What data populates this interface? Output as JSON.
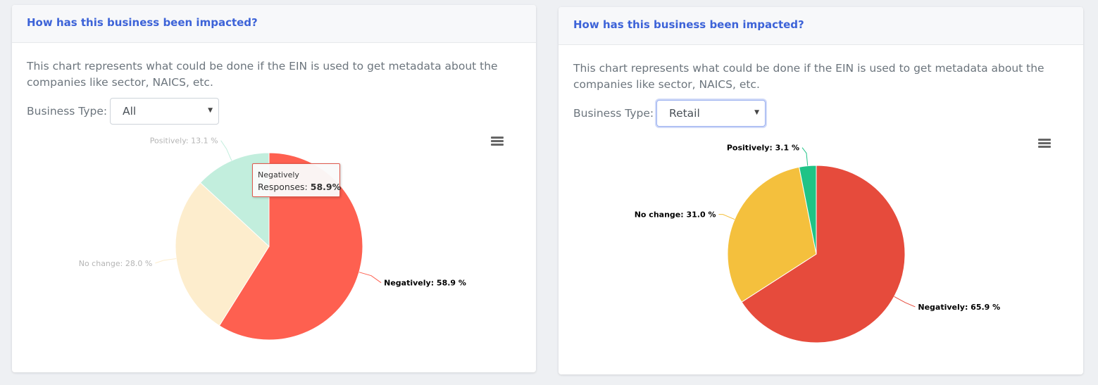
{
  "left_card": {
    "title": "How has this business been impacted?",
    "description": "This chart represents what could be done if the EIN is used to get metadata about the companies like sector, NAICS, etc.",
    "business_type_label": "Business Type:",
    "business_type_value": "All",
    "menu_icon": "hamburger-menu-icon",
    "tooltip": {
      "title": "Negatively",
      "series": "Responses:",
      "value": "58.9%"
    }
  },
  "right_card": {
    "title": "How has this business been impacted?",
    "description": "This chart represents what could be done if the EIN is used to get metadata about the companies like sector, NAICS, etc.",
    "business_type_label": "Business Type:",
    "business_type_value": "Retail",
    "menu_icon": "hamburger-menu-icon"
  },
  "chart_data": [
    {
      "type": "pie",
      "slices": [
        {
          "name": "Negatively",
          "value": 58.9,
          "label": "Negatively: 58.9 %",
          "color": "#fe6050",
          "highlighted": true
        },
        {
          "name": "No change",
          "value": 28.0,
          "label": "No change: 28.0 %",
          "color": "#fdedcd",
          "highlighted": false
        },
        {
          "name": "Positively",
          "value": 13.1,
          "label": "Positively: 13.1 %",
          "color": "#c2eedd",
          "highlighted": false
        }
      ]
    },
    {
      "type": "pie",
      "slices": [
        {
          "name": "Negatively",
          "value": 65.9,
          "label": "Negatively: 65.9 %",
          "color": "#e64b3c",
          "highlighted": false
        },
        {
          "name": "No change",
          "value": 31.0,
          "label": "No change: 31.0 %",
          "color": "#f4c03d",
          "highlighted": false
        },
        {
          "name": "Positively",
          "value": 3.1,
          "label": "Positively: 3.1 %",
          "color": "#1fc386",
          "highlighted": false
        }
      ]
    }
  ]
}
